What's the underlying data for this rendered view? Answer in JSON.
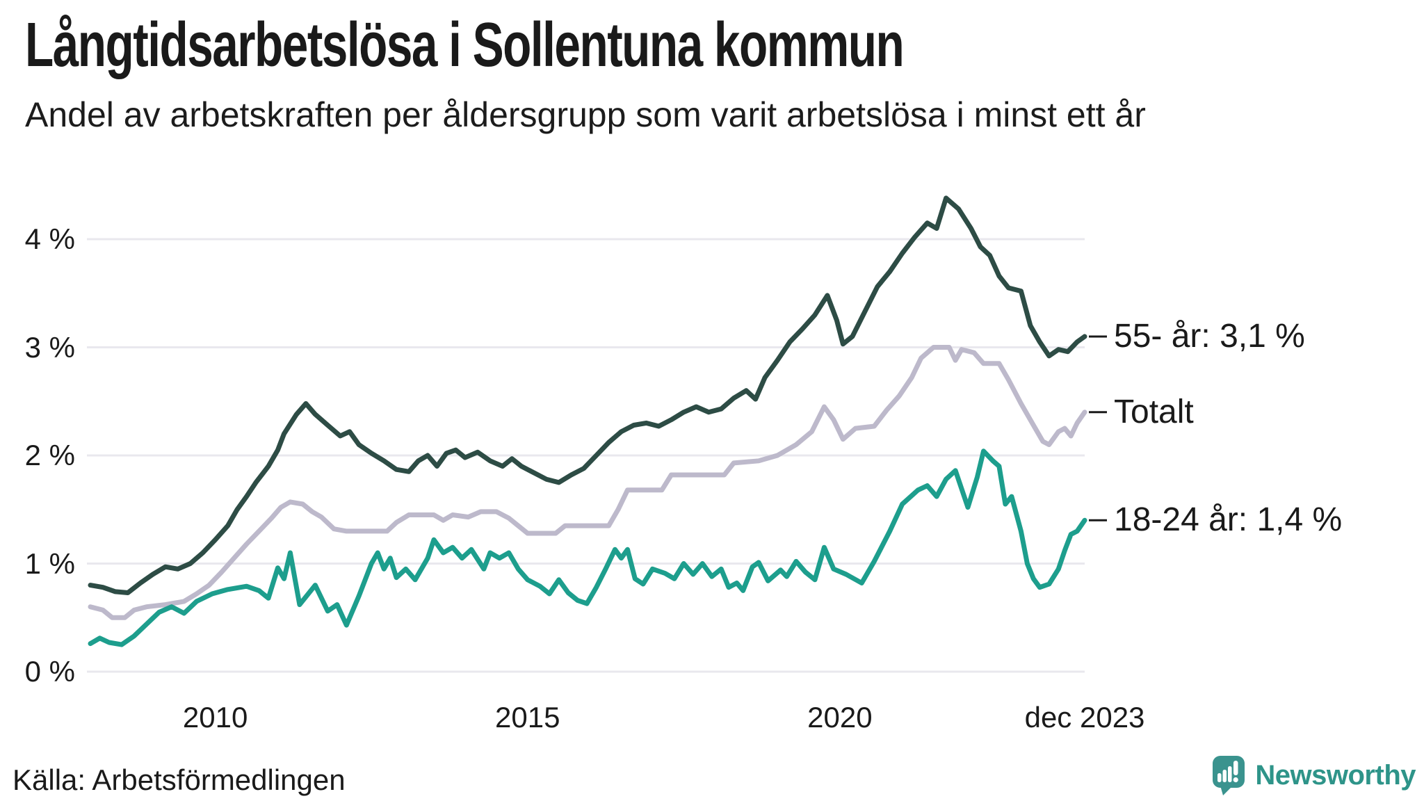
{
  "header": {
    "title": "Långtidsarbetslösa i Sollentuna kommun",
    "subtitle": "Andel av arbetskraften per åldersgrupp som varit arbetslösa i minst ett år"
  },
  "footer": {
    "source": "Källa: Arbetsförmedlingen",
    "brand_name": "Newsworthy"
  },
  "colors": {
    "text": "#1a1a1a",
    "grid_line": "#e9e8ee",
    "annotation_tick": "#1a1a1a",
    "series_55": "#2d4c45",
    "series_totalt": "#bdb9cb",
    "series_18_24": "#1d9e8d",
    "brand_teal": "#2e9489",
    "brand_icon_bg": "#3a938e"
  },
  "chart_data": {
    "type": "line",
    "title": "Långtidsarbetslösa i Sollentuna kommun",
    "subtitle": "Andel av arbetskraften per åldersgrupp som varit arbetslösa i minst ett år",
    "xlabel": "",
    "ylabel": "",
    "x_unit": "year (monthly series, jan 2008 - dec 2023)",
    "y_unit": "% av arbetskraften",
    "xlim": [
      2008,
      2023.92
    ],
    "ylim": [
      0,
      4.6
    ],
    "grid": true,
    "legend_position": "right-edge-annotations",
    "y_ticks": [
      {
        "value": 0,
        "label": "0 %"
      },
      {
        "value": 1,
        "label": "1 %"
      },
      {
        "value": 2,
        "label": "2 %"
      },
      {
        "value": 3,
        "label": "3 %"
      },
      {
        "value": 4,
        "label": "4 %"
      }
    ],
    "x_ticks": [
      {
        "value": 2010,
        "label": "2010"
      },
      {
        "value": 2015,
        "label": "2015"
      },
      {
        "value": 2020,
        "label": "2020"
      },
      {
        "value": 2023.92,
        "label": "dec 2023"
      }
    ],
    "series": [
      {
        "name": "Totalt",
        "end_label": "Totalt",
        "end_value": 2.4,
        "color": "#bdb9cb",
        "points": [
          [
            2008.0,
            0.6
          ],
          [
            2008.2,
            0.57
          ],
          [
            2008.35,
            0.5
          ],
          [
            2008.55,
            0.5
          ],
          [
            2008.7,
            0.57
          ],
          [
            2008.9,
            0.6
          ],
          [
            2009.2,
            0.62
          ],
          [
            2009.5,
            0.65
          ],
          [
            2009.7,
            0.72
          ],
          [
            2009.9,
            0.8
          ],
          [
            2010.1,
            0.92
          ],
          [
            2010.3,
            1.05
          ],
          [
            2010.5,
            1.18
          ],
          [
            2010.7,
            1.3
          ],
          [
            2010.9,
            1.42
          ],
          [
            2011.05,
            1.52
          ],
          [
            2011.2,
            1.57
          ],
          [
            2011.4,
            1.55
          ],
          [
            2011.55,
            1.48
          ],
          [
            2011.7,
            1.43
          ],
          [
            2011.9,
            1.32
          ],
          [
            2012.1,
            1.3
          ],
          [
            2012.75,
            1.3
          ],
          [
            2012.9,
            1.38
          ],
          [
            2013.1,
            1.45
          ],
          [
            2013.5,
            1.45
          ],
          [
            2013.65,
            1.4
          ],
          [
            2013.8,
            1.45
          ],
          [
            2014.05,
            1.43
          ],
          [
            2014.25,
            1.48
          ],
          [
            2014.5,
            1.48
          ],
          [
            2014.7,
            1.42
          ],
          [
            2014.85,
            1.35
          ],
          [
            2015.0,
            1.28
          ],
          [
            2015.45,
            1.28
          ],
          [
            2015.6,
            1.35
          ],
          [
            2016.3,
            1.35
          ],
          [
            2016.45,
            1.5
          ],
          [
            2016.6,
            1.68
          ],
          [
            2017.15,
            1.68
          ],
          [
            2017.3,
            1.82
          ],
          [
            2018.15,
            1.82
          ],
          [
            2018.3,
            1.93
          ],
          [
            2018.7,
            1.95
          ],
          [
            2019.0,
            2.0
          ],
          [
            2019.3,
            2.1
          ],
          [
            2019.55,
            2.22
          ],
          [
            2019.75,
            2.45
          ],
          [
            2019.9,
            2.33
          ],
          [
            2020.05,
            2.15
          ],
          [
            2020.25,
            2.25
          ],
          [
            2020.55,
            2.27
          ],
          [
            2020.75,
            2.42
          ],
          [
            2020.95,
            2.55
          ],
          [
            2021.15,
            2.72
          ],
          [
            2021.3,
            2.9
          ],
          [
            2021.5,
            3.0
          ],
          [
            2021.75,
            3.0
          ],
          [
            2021.85,
            2.88
          ],
          [
            2021.95,
            2.98
          ],
          [
            2022.15,
            2.95
          ],
          [
            2022.3,
            2.85
          ],
          [
            2022.55,
            2.85
          ],
          [
            2022.7,
            2.7
          ],
          [
            2022.9,
            2.48
          ],
          [
            2023.1,
            2.28
          ],
          [
            2023.25,
            2.13
          ],
          [
            2023.35,
            2.1
          ],
          [
            2023.5,
            2.22
          ],
          [
            2023.6,
            2.25
          ],
          [
            2023.7,
            2.18
          ],
          [
            2023.8,
            2.3
          ],
          [
            2023.92,
            2.4
          ]
        ]
      },
      {
        "name": "55- år",
        "end_label": "55- år: 3,1 %",
        "end_value": 3.1,
        "color": "#2d4c45",
        "points": [
          [
            2008.0,
            0.8
          ],
          [
            2008.2,
            0.78
          ],
          [
            2008.4,
            0.74
          ],
          [
            2008.6,
            0.73
          ],
          [
            2008.8,
            0.82
          ],
          [
            2009.0,
            0.9
          ],
          [
            2009.2,
            0.97
          ],
          [
            2009.4,
            0.95
          ],
          [
            2009.6,
            1.0
          ],
          [
            2009.8,
            1.1
          ],
          [
            2010.0,
            1.22
          ],
          [
            2010.2,
            1.35
          ],
          [
            2010.35,
            1.5
          ],
          [
            2010.5,
            1.62
          ],
          [
            2010.65,
            1.75
          ],
          [
            2010.85,
            1.9
          ],
          [
            2011.0,
            2.05
          ],
          [
            2011.1,
            2.2
          ],
          [
            2011.3,
            2.38
          ],
          [
            2011.45,
            2.48
          ],
          [
            2011.6,
            2.38
          ],
          [
            2011.8,
            2.28
          ],
          [
            2012.0,
            2.18
          ],
          [
            2012.15,
            2.22
          ],
          [
            2012.3,
            2.1
          ],
          [
            2012.5,
            2.02
          ],
          [
            2012.7,
            1.95
          ],
          [
            2012.9,
            1.87
          ],
          [
            2013.1,
            1.85
          ],
          [
            2013.25,
            1.95
          ],
          [
            2013.4,
            2.0
          ],
          [
            2013.55,
            1.9
          ],
          [
            2013.7,
            2.02
          ],
          [
            2013.85,
            2.05
          ],
          [
            2014.0,
            1.98
          ],
          [
            2014.2,
            2.03
          ],
          [
            2014.4,
            1.95
          ],
          [
            2014.6,
            1.9
          ],
          [
            2014.75,
            1.97
          ],
          [
            2014.9,
            1.9
          ],
          [
            2015.1,
            1.84
          ],
          [
            2015.3,
            1.78
          ],
          [
            2015.5,
            1.75
          ],
          [
            2015.7,
            1.82
          ],
          [
            2015.9,
            1.88
          ],
          [
            2016.1,
            2.0
          ],
          [
            2016.3,
            2.12
          ],
          [
            2016.5,
            2.22
          ],
          [
            2016.7,
            2.28
          ],
          [
            2016.9,
            2.3
          ],
          [
            2017.1,
            2.27
          ],
          [
            2017.3,
            2.33
          ],
          [
            2017.5,
            2.4
          ],
          [
            2017.7,
            2.45
          ],
          [
            2017.9,
            2.4
          ],
          [
            2018.1,
            2.43
          ],
          [
            2018.3,
            2.53
          ],
          [
            2018.5,
            2.6
          ],
          [
            2018.65,
            2.52
          ],
          [
            2018.8,
            2.72
          ],
          [
            2019.0,
            2.88
          ],
          [
            2019.2,
            3.05
          ],
          [
            2019.4,
            3.17
          ],
          [
            2019.6,
            3.3
          ],
          [
            2019.8,
            3.48
          ],
          [
            2019.95,
            3.25
          ],
          [
            2020.05,
            3.03
          ],
          [
            2020.2,
            3.1
          ],
          [
            2020.4,
            3.33
          ],
          [
            2020.6,
            3.56
          ],
          [
            2020.8,
            3.7
          ],
          [
            2021.0,
            3.87
          ],
          [
            2021.2,
            4.02
          ],
          [
            2021.4,
            4.15
          ],
          [
            2021.55,
            4.1
          ],
          [
            2021.7,
            4.38
          ],
          [
            2021.9,
            4.28
          ],
          [
            2022.1,
            4.1
          ],
          [
            2022.25,
            3.93
          ],
          [
            2022.4,
            3.85
          ],
          [
            2022.55,
            3.66
          ],
          [
            2022.7,
            3.55
          ],
          [
            2022.9,
            3.52
          ],
          [
            2023.05,
            3.2
          ],
          [
            2023.2,
            3.05
          ],
          [
            2023.35,
            2.92
          ],
          [
            2023.5,
            2.98
          ],
          [
            2023.65,
            2.96
          ],
          [
            2023.8,
            3.05
          ],
          [
            2023.92,
            3.1
          ]
        ]
      },
      {
        "name": "18-24 år",
        "end_label": "18-24 år: 1,4 %",
        "end_value": 1.4,
        "color": "#1d9e8d",
        "points": [
          [
            2008.0,
            0.26
          ],
          [
            2008.15,
            0.31
          ],
          [
            2008.3,
            0.27
          ],
          [
            2008.5,
            0.25
          ],
          [
            2008.7,
            0.33
          ],
          [
            2008.9,
            0.44
          ],
          [
            2009.1,
            0.55
          ],
          [
            2009.3,
            0.6
          ],
          [
            2009.5,
            0.54
          ],
          [
            2009.7,
            0.65
          ],
          [
            2009.95,
            0.72
          ],
          [
            2010.2,
            0.76
          ],
          [
            2010.5,
            0.79
          ],
          [
            2010.7,
            0.75
          ],
          [
            2010.85,
            0.68
          ],
          [
            2011.0,
            0.96
          ],
          [
            2011.1,
            0.86
          ],
          [
            2011.2,
            1.1
          ],
          [
            2011.35,
            0.62
          ],
          [
            2011.6,
            0.8
          ],
          [
            2011.8,
            0.56
          ],
          [
            2011.95,
            0.62
          ],
          [
            2012.1,
            0.43
          ],
          [
            2012.3,
            0.7
          ],
          [
            2012.5,
            1.0
          ],
          [
            2012.6,
            1.1
          ],
          [
            2012.7,
            0.95
          ],
          [
            2012.8,
            1.05
          ],
          [
            2012.9,
            0.87
          ],
          [
            2013.05,
            0.95
          ],
          [
            2013.2,
            0.85
          ],
          [
            2013.4,
            1.05
          ],
          [
            2013.5,
            1.22
          ],
          [
            2013.65,
            1.1
          ],
          [
            2013.8,
            1.15
          ],
          [
            2013.95,
            1.05
          ],
          [
            2014.1,
            1.13
          ],
          [
            2014.3,
            0.95
          ],
          [
            2014.4,
            1.1
          ],
          [
            2014.55,
            1.05
          ],
          [
            2014.7,
            1.1
          ],
          [
            2014.85,
            0.95
          ],
          [
            2015.0,
            0.85
          ],
          [
            2015.2,
            0.79
          ],
          [
            2015.35,
            0.72
          ],
          [
            2015.5,
            0.85
          ],
          [
            2015.65,
            0.73
          ],
          [
            2015.8,
            0.66
          ],
          [
            2015.95,
            0.63
          ],
          [
            2016.1,
            0.78
          ],
          [
            2016.25,
            0.95
          ],
          [
            2016.4,
            1.13
          ],
          [
            2016.5,
            1.05
          ],
          [
            2016.6,
            1.13
          ],
          [
            2016.72,
            0.86
          ],
          [
            2016.85,
            0.81
          ],
          [
            2017.0,
            0.95
          ],
          [
            2017.2,
            0.91
          ],
          [
            2017.35,
            0.86
          ],
          [
            2017.5,
            1.0
          ],
          [
            2017.65,
            0.9
          ],
          [
            2017.8,
            1.0
          ],
          [
            2017.95,
            0.88
          ],
          [
            2018.1,
            0.95
          ],
          [
            2018.22,
            0.78
          ],
          [
            2018.35,
            0.82
          ],
          [
            2018.45,
            0.75
          ],
          [
            2018.6,
            0.97
          ],
          [
            2018.7,
            1.01
          ],
          [
            2018.85,
            0.84
          ],
          [
            2019.05,
            0.94
          ],
          [
            2019.15,
            0.88
          ],
          [
            2019.3,
            1.02
          ],
          [
            2019.45,
            0.92
          ],
          [
            2019.6,
            0.85
          ],
          [
            2019.75,
            1.15
          ],
          [
            2019.9,
            0.95
          ],
          [
            2020.1,
            0.9
          ],
          [
            2020.35,
            0.82
          ],
          [
            2020.55,
            1.02
          ],
          [
            2020.8,
            1.3
          ],
          [
            2021.0,
            1.55
          ],
          [
            2021.25,
            1.68
          ],
          [
            2021.4,
            1.72
          ],
          [
            2021.55,
            1.62
          ],
          [
            2021.7,
            1.78
          ],
          [
            2021.85,
            1.86
          ],
          [
            2022.05,
            1.52
          ],
          [
            2022.2,
            1.8
          ],
          [
            2022.3,
            2.04
          ],
          [
            2022.45,
            1.95
          ],
          [
            2022.55,
            1.9
          ],
          [
            2022.65,
            1.55
          ],
          [
            2022.75,
            1.62
          ],
          [
            2022.9,
            1.3
          ],
          [
            2023.0,
            1.0
          ],
          [
            2023.1,
            0.86
          ],
          [
            2023.2,
            0.78
          ],
          [
            2023.35,
            0.81
          ],
          [
            2023.5,
            0.95
          ],
          [
            2023.6,
            1.12
          ],
          [
            2023.7,
            1.27
          ],
          [
            2023.8,
            1.3
          ],
          [
            2023.92,
            1.4
          ]
        ]
      }
    ]
  }
}
